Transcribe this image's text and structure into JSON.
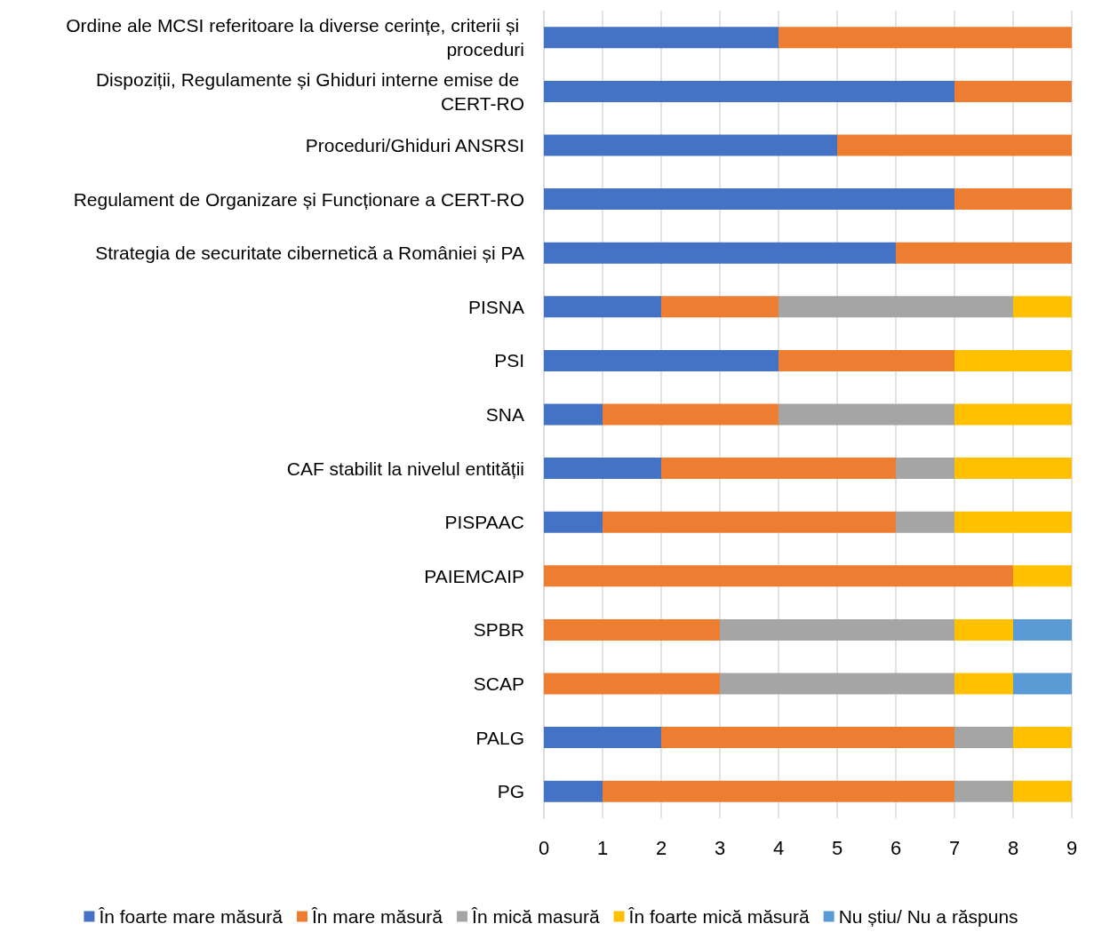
{
  "chart_data": {
    "type": "bar",
    "orientation": "horizontal",
    "stacked": true,
    "categories": [
      "Ordine ale MCSI referitoare la diverse cerințe, criterii și proceduri",
      "Dispoziții, Regulamente și Ghiduri interne emise de CERT-RO",
      "Proceduri/Ghiduri ANSRSI",
      "Regulament de Organizare și Funcționare a CERT-RO",
      "Strategia de securitate cibernetică a României și PA",
      "PISNA",
      "PSI",
      "SNA",
      "CAF stabilit la nivelul entității",
      "PISPAAC",
      "PAIEMCAIP",
      "SPBR",
      "SCAP",
      "PALG",
      "PG"
    ],
    "series": [
      {
        "name": "În foarte mare măsură",
        "color": "#4472c4",
        "values": [
          4,
          7,
          5,
          7,
          6,
          2,
          4,
          1,
          2,
          1,
          0,
          0,
          0,
          2,
          1
        ]
      },
      {
        "name": "În mare măsură",
        "color": "#ed7d31",
        "values": [
          5,
          2,
          4,
          2,
          3,
          2,
          3,
          3,
          4,
          5,
          8,
          3,
          3,
          5,
          6
        ]
      },
      {
        "name": "În mică masură",
        "color": "#a5a5a5",
        "values": [
          0,
          0,
          0,
          0,
          0,
          4,
          0,
          3,
          1,
          1,
          0,
          4,
          4,
          1,
          1
        ]
      },
      {
        "name": "În foarte mică măsură",
        "color": "#ffc000",
        "values": [
          0,
          0,
          0,
          0,
          0,
          1,
          2,
          2,
          2,
          2,
          1,
          1,
          1,
          1,
          1
        ]
      },
      {
        "name": "Nu știu/ Nu a răspuns",
        "color": "#5b9bd5",
        "values": [
          0,
          0,
          0,
          0,
          0,
          0,
          0,
          0,
          0,
          0,
          0,
          1,
          1,
          0,
          0
        ]
      }
    ],
    "xlim": [
      0,
      9
    ],
    "xticks": [
      0,
      1,
      2,
      3,
      4,
      5,
      6,
      7,
      8,
      9
    ],
    "grid": "x",
    "legend": "bottom"
  }
}
